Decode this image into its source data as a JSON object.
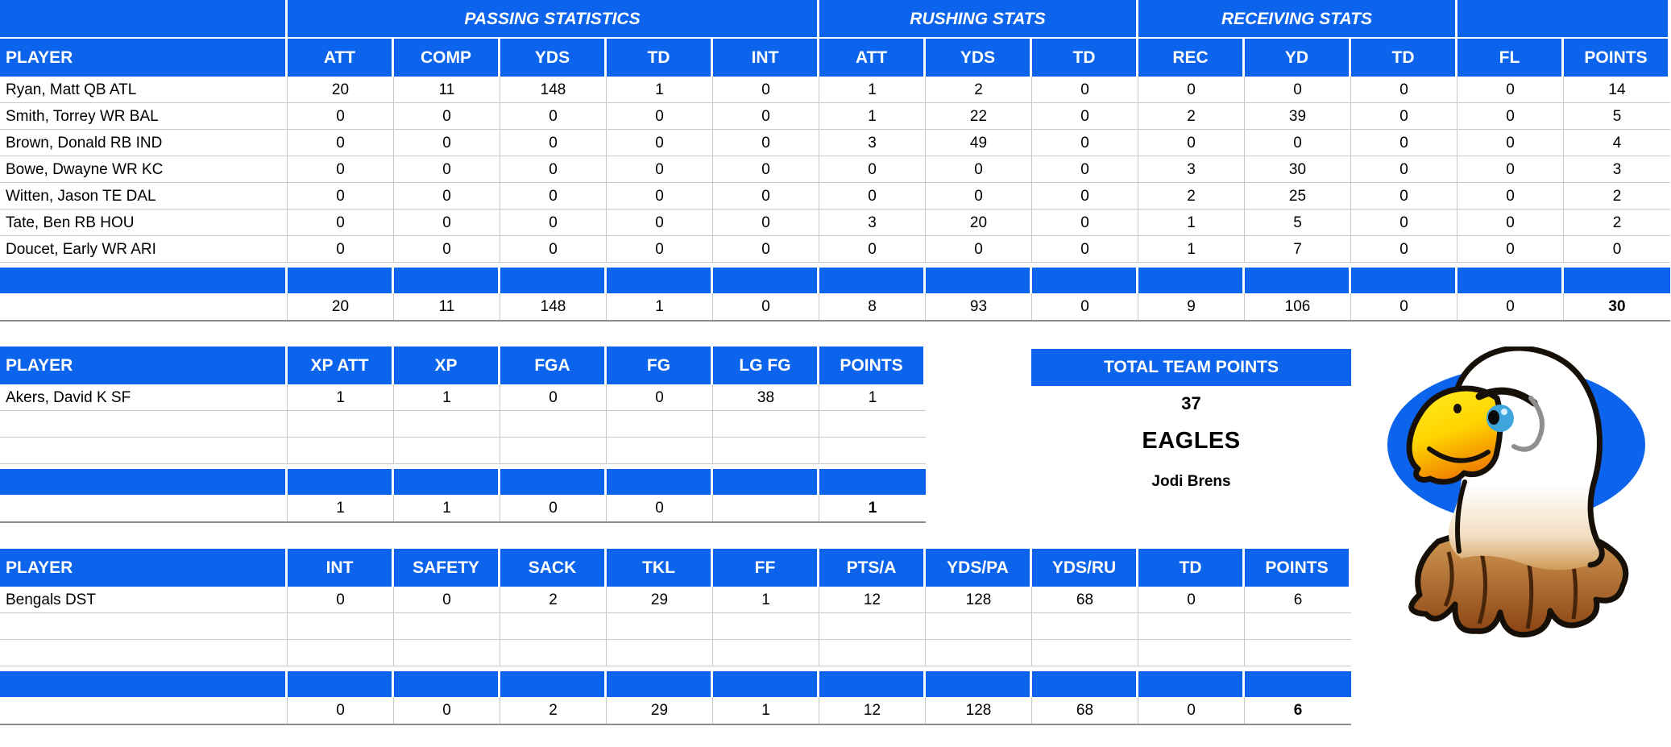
{
  "theme": {
    "header_blue": "#0d64ec",
    "gridline_gray": "#c8c8c8",
    "header_text_white": "#ffffff",
    "data_text_black": "#000000"
  },
  "offense_table": {
    "group_headers": [
      {
        "label": "",
        "span": "player"
      },
      {
        "label": "PASSING STATISTICS",
        "span": 5
      },
      {
        "label": "RUSHING STATS",
        "span": 3
      },
      {
        "label": "RECEIVING STATS",
        "span": 3
      },
      {
        "label": "",
        "span": 2
      }
    ],
    "columns": [
      "PLAYER",
      "ATT",
      "COMP",
      "YDS",
      "TD",
      "INT",
      "ATT",
      "YDS",
      "TD",
      "REC",
      "YD",
      "TD",
      "FL",
      "POINTS"
    ],
    "rows": [
      {
        "player": "Ryan, Matt QB ATL",
        "values": [
          "20",
          "11",
          "148",
          "1",
          "0",
          "1",
          "2",
          "0",
          "0",
          "0",
          "0",
          "0",
          "14"
        ]
      },
      {
        "player": "Smith, Torrey WR BAL",
        "values": [
          "0",
          "0",
          "0",
          "0",
          "0",
          "1",
          "22",
          "0",
          "2",
          "39",
          "0",
          "0",
          "5"
        ]
      },
      {
        "player": "Brown, Donald RB IND",
        "values": [
          "0",
          "0",
          "0",
          "0",
          "0",
          "3",
          "49",
          "0",
          "0",
          "0",
          "0",
          "0",
          "4"
        ]
      },
      {
        "player": "Bowe, Dwayne WR KC",
        "values": [
          "0",
          "0",
          "0",
          "0",
          "0",
          "0",
          "0",
          "0",
          "3",
          "30",
          "0",
          "0",
          "3"
        ]
      },
      {
        "player": "Witten, Jason TE DAL",
        "values": [
          "0",
          "0",
          "0",
          "0",
          "0",
          "0",
          "0",
          "0",
          "2",
          "25",
          "0",
          "0",
          "2"
        ]
      },
      {
        "player": "Tate, Ben RB HOU",
        "values": [
          "0",
          "0",
          "0",
          "0",
          "0",
          "3",
          "20",
          "0",
          "1",
          "5",
          "0",
          "0",
          "2"
        ]
      },
      {
        "player": "Doucet, Early WR ARI",
        "values": [
          "0",
          "0",
          "0",
          "0",
          "0",
          "0",
          "0",
          "0",
          "1",
          "7",
          "0",
          "0",
          "0"
        ]
      }
    ],
    "empty_rows": 0,
    "totals": [
      "20",
      "11",
      "148",
      "1",
      "0",
      "8",
      "93",
      "0",
      "9",
      "106",
      "0",
      "0",
      "30"
    ]
  },
  "kicker_table": {
    "columns": [
      "PLAYER",
      "XP ATT",
      "XP",
      "FGA",
      "FG",
      "LG FG",
      "POINTS"
    ],
    "rows": [
      {
        "player": "Akers, David K SF",
        "values": [
          "1",
          "1",
          "0",
          "0",
          "38",
          "1"
        ]
      }
    ],
    "empty_rows": 2,
    "totals": [
      "1",
      "1",
      "0",
      "0",
      "",
      "1"
    ]
  },
  "defense_table": {
    "columns": [
      "PLAYER",
      "INT",
      "SAFETY",
      "SACK",
      "TKL",
      "FF",
      "PTS/A",
      "YDS/PA",
      "YDS/RU",
      "TD",
      "POINTS"
    ],
    "rows": [
      {
        "player": "Bengals DST",
        "values": [
          "0",
          "0",
          "2",
          "29",
          "1",
          "12",
          "128",
          "68",
          "0",
          "6"
        ]
      }
    ],
    "empty_rows": 2,
    "totals": [
      "0",
      "0",
      "2",
      "29",
      "1",
      "12",
      "128",
      "68",
      "0",
      "6"
    ]
  },
  "team_summary": {
    "title": "TOTAL TEAM POINTS",
    "total_points": "37",
    "team_name": "EAGLES",
    "owner_name": "Jodi Brens"
  },
  "logo": {
    "icon": "eagle-mascot"
  }
}
